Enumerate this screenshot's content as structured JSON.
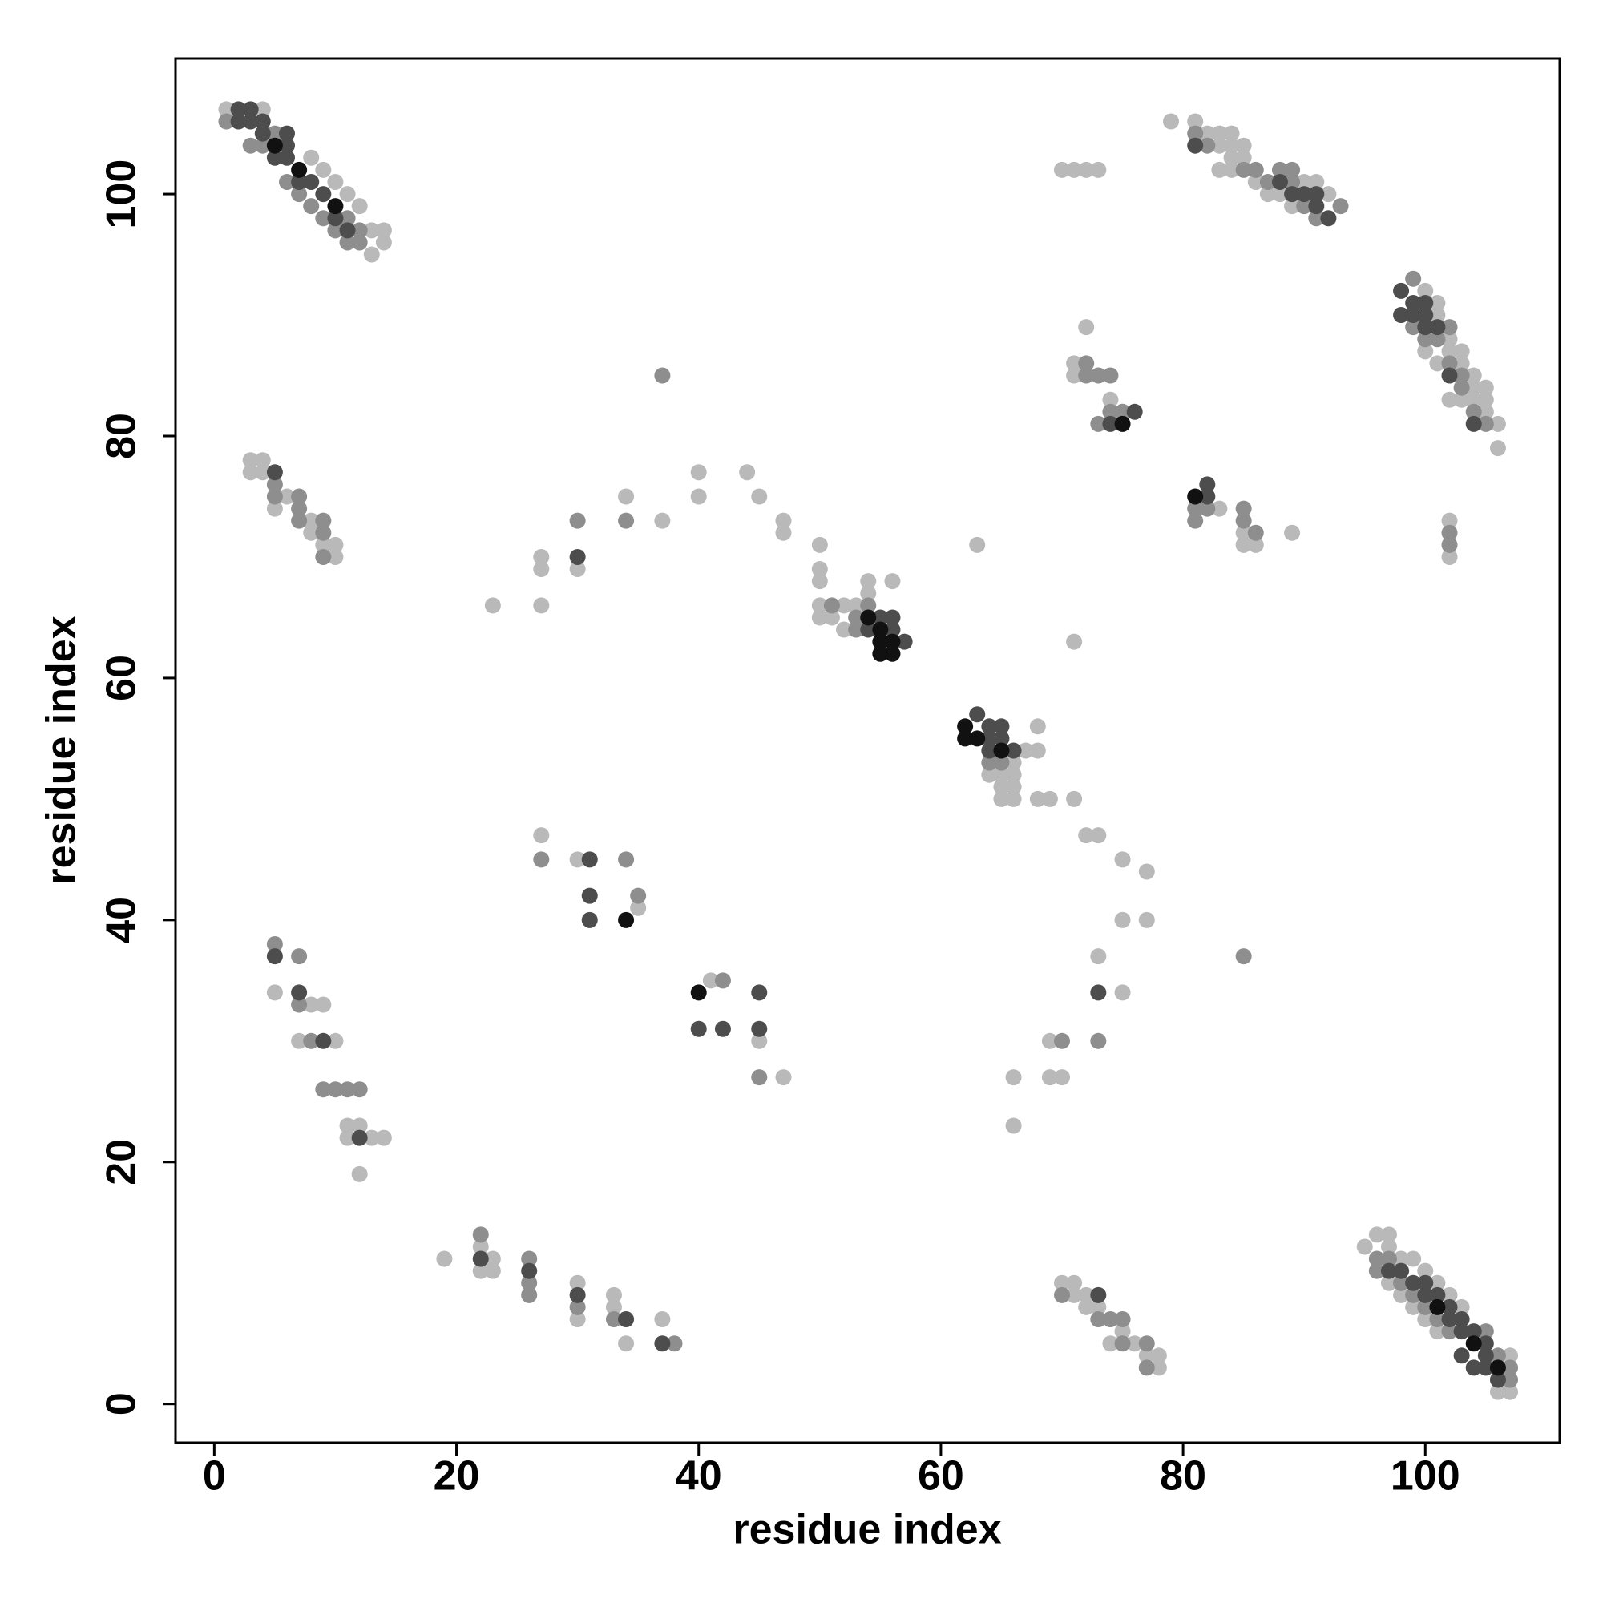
{
  "chart_data": {
    "type": "scatter",
    "xlabel": "residue index",
    "ylabel": "residue index",
    "xlim": [
      -3.2,
      111.1
    ],
    "ylim": [
      -3.2,
      111.2
    ],
    "xticks": [
      0,
      20,
      40,
      60,
      80,
      100
    ],
    "yticks": [
      0,
      20,
      40,
      60,
      80,
      100
    ],
    "series": [
      {
        "color": "#b9b9b9",
        "x": [
          1,
          4,
          12,
          13,
          14,
          14,
          13,
          11,
          10,
          9,
          8,
          79,
          81,
          82,
          83,
          84,
          83,
          84,
          85,
          84,
          85,
          83,
          84,
          86,
          87,
          88,
          89,
          90,
          91,
          92,
          100,
          101,
          101,
          102,
          102,
          103,
          103,
          104,
          104,
          105,
          105,
          106,
          106,
          105,
          104,
          103,
          102,
          101,
          100,
          95,
          96,
          97,
          97,
          98,
          99,
          100,
          101,
          102,
          103,
          97,
          98,
          99,
          100,
          101,
          107,
          107,
          106,
          3,
          4,
          3,
          5,
          6,
          8,
          8,
          9,
          10,
          10,
          4,
          5,
          8,
          9,
          10,
          11,
          11,
          12,
          13,
          14,
          12,
          7,
          19,
          22,
          22,
          23,
          23,
          30,
          30,
          33,
          33,
          34,
          37,
          23,
          27,
          27,
          27,
          30,
          34,
          37,
          40,
          40,
          44,
          45,
          47,
          47,
          50,
          50,
          50,
          50,
          50,
          51,
          52,
          53,
          52,
          54,
          54,
          56,
          66,
          64,
          65,
          66,
          65,
          66,
          65,
          66,
          68,
          67,
          68,
          68,
          69,
          71,
          72,
          73,
          75,
          77,
          75,
          77,
          71,
          63,
          27,
          30,
          35,
          41,
          45,
          47,
          66,
          66,
          69,
          70,
          69,
          73,
          75,
          70,
          71,
          71,
          72,
          72,
          73,
          74,
          75,
          76,
          78,
          78,
          77,
          70,
          71,
          72,
          73,
          72,
          71,
          71,
          74,
          83,
          85,
          85,
          86,
          89,
          102,
          102
        ],
        "y": [
          107,
          107,
          99,
          97,
          97,
          96,
          95,
          100,
          101,
          102,
          103,
          106,
          106,
          105,
          105,
          105,
          104,
          104,
          104,
          103,
          103,
          102,
          102,
          101,
          100,
          100,
          99,
          101,
          101,
          100,
          92,
          91,
          90,
          88,
          87,
          87,
          86,
          85,
          84,
          84,
          83,
          81,
          79,
          82,
          83,
          83,
          83,
          86,
          87,
          13,
          14,
          14,
          13,
          12,
          12,
          11,
          10,
          9,
          8,
          10,
          9,
          8,
          7,
          6,
          4,
          1,
          1,
          78,
          78,
          77,
          74,
          75,
          73,
          72,
          71,
          71,
          70,
          77,
          34,
          33,
          33,
          30,
          23,
          22,
          23,
          22,
          22,
          19,
          30,
          12,
          13,
          11,
          12,
          11,
          10,
          7,
          9,
          8,
          5,
          7,
          66,
          70,
          69,
          66,
          69,
          75,
          73,
          77,
          75,
          77,
          75,
          73,
          72,
          71,
          69,
          68,
          66,
          65,
          65,
          66,
          66,
          64,
          68,
          67,
          68,
          53,
          52,
          52,
          52,
          51,
          51,
          50,
          50,
          56,
          54,
          54,
          50,
          50,
          50,
          47,
          47,
          45,
          44,
          40,
          40,
          63,
          71,
          47,
          45,
          41,
          35,
          30,
          27,
          27,
          23,
          27,
          27,
          30,
          37,
          34,
          10,
          10,
          9,
          9,
          8,
          8,
          5,
          6,
          5,
          4,
          3,
          4,
          102,
          102,
          102,
          102,
          89,
          86,
          85,
          83,
          74,
          72,
          71,
          71,
          72,
          73,
          70
        ]
      },
      {
        "color": "#8e8e8e",
        "x": [
          1,
          3,
          4,
          5,
          6,
          7,
          8,
          9,
          10,
          11,
          12,
          12,
          11,
          81,
          82,
          85,
          86,
          87,
          88,
          89,
          90,
          91,
          89,
          93,
          99,
          99,
          100,
          101,
          102,
          102,
          103,
          104,
          103,
          105,
          96,
          96,
          97,
          98,
          99,
          100,
          101,
          102,
          107,
          107,
          105,
          106,
          5,
          5,
          7,
          7,
          7,
          9,
          9,
          9,
          5,
          7,
          7,
          8,
          9,
          10,
          11,
          12,
          22,
          26,
          26,
          26,
          30,
          33,
          38,
          30,
          34,
          37,
          51,
          53,
          54,
          53,
          64,
          65,
          27,
          34,
          35,
          42,
          45,
          70,
          73,
          70,
          73,
          74,
          75,
          75,
          77,
          77,
          72,
          72,
          73,
          74,
          73,
          74,
          75,
          81,
          82,
          85,
          85,
          86,
          81,
          85,
          102,
          102
        ],
        "y": [
          106,
          104,
          104,
          105,
          101,
          100,
          99,
          98,
          97,
          96,
          96,
          97,
          98,
          105,
          104,
          102,
          102,
          101,
          102,
          102,
          99,
          98,
          101,
          99,
          93,
          89,
          88,
          88,
          89,
          86,
          85,
          82,
          84,
          81,
          12,
          11,
          12,
          10,
          9,
          8,
          7,
          6,
          3,
          2,
          6,
          4,
          76,
          75,
          75,
          74,
          73,
          73,
          72,
          70,
          38,
          37,
          33,
          30,
          26,
          26,
          26,
          26,
          14,
          12,
          10,
          9,
          8,
          7,
          5,
          73,
          73,
          85,
          66,
          64,
          66,
          65,
          53,
          53,
          45,
          45,
          42,
          35,
          27,
          30,
          30,
          9,
          7,
          7,
          7,
          5,
          5,
          3,
          86,
          85,
          85,
          85,
          81,
          82,
          82,
          74,
          74,
          74,
          73,
          72,
          73,
          37,
          72,
          71
        ]
      },
      {
        "color": "#4d4d4d",
        "x": [
          2,
          3,
          3,
          4,
          4,
          5,
          6,
          6,
          7,
          8,
          9,
          10,
          11,
          6,
          2,
          81,
          88,
          89,
          90,
          91,
          92,
          91,
          98,
          98,
          99,
          99,
          100,
          100,
          100,
          101,
          102,
          104,
          97,
          98,
          99,
          100,
          100,
          101,
          102,
          102,
          103,
          103,
          104,
          105,
          105,
          104,
          105,
          106,
          103,
          5,
          5,
          7,
          9,
          12,
          22,
          26,
          30,
          34,
          37,
          30,
          54,
          56,
          56,
          55,
          57,
          63,
          64,
          64,
          65,
          65,
          64,
          66,
          31,
          31,
          31,
          40,
          42,
          45,
          45,
          73,
          73,
          74,
          76,
          82,
          82
        ],
        "y": [
          107,
          107,
          106,
          106,
          105,
          103,
          104,
          103,
          101,
          101,
          100,
          98,
          97,
          105,
          106,
          104,
          101,
          100,
          100,
          100,
          98,
          99,
          92,
          90,
          91,
          90,
          91,
          90,
          89,
          89,
          85,
          81,
          11,
          11,
          10,
          9,
          10,
          9,
          8,
          7,
          7,
          6,
          6,
          5,
          4,
          3,
          3,
          2,
          4,
          77,
          37,
          34,
          30,
          22,
          12,
          11,
          9,
          7,
          5,
          70,
          64,
          65,
          64,
          65,
          63,
          57,
          56,
          55,
          56,
          55,
          54,
          54,
          45,
          42,
          40,
          31,
          31,
          31,
          34,
          34,
          9,
          81,
          82,
          76,
          75
        ]
      },
      {
        "color": "#111111",
        "x": [
          5,
          7,
          10,
          101,
          104,
          106,
          54,
          55,
          55,
          56,
          55,
          56,
          62,
          62,
          63,
          65,
          34,
          40,
          75,
          81
        ],
        "y": [
          104,
          102,
          99,
          8,
          5,
          3,
          65,
          64,
          63,
          63,
          62,
          62,
          56,
          55,
          55,
          54,
          40,
          34,
          81,
          75
        ]
      }
    ]
  }
}
